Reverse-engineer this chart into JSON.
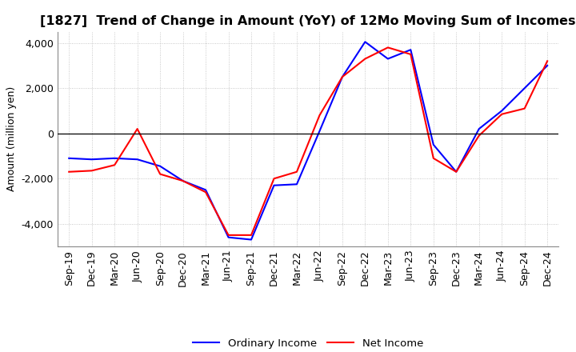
{
  "title": "[1827]  Trend of Change in Amount (YoY) of 12Mo Moving Sum of Incomes",
  "ylabel": "Amount (million yen)",
  "x_labels": [
    "Sep-19",
    "Dec-19",
    "Mar-20",
    "Jun-20",
    "Sep-20",
    "Dec-20",
    "Mar-21",
    "Jun-21",
    "Sep-21",
    "Dec-21",
    "Mar-22",
    "Jun-22",
    "Sep-22",
    "Dec-22",
    "Mar-23",
    "Jun-23",
    "Sep-23",
    "Dec-23",
    "Mar-24",
    "Jun-24",
    "Sep-24",
    "Dec-24"
  ],
  "ordinary_income": [
    -1100,
    -1150,
    -1100,
    -1150,
    -1450,
    -2100,
    -2500,
    -4600,
    -4700,
    -2300,
    -2250,
    100,
    2500,
    4050,
    3300,
    3700,
    -500,
    -1700,
    200,
    1000,
    2000,
    3000
  ],
  "net_income": [
    -1700,
    -1650,
    -1400,
    200,
    -1800,
    -2100,
    -2600,
    -4500,
    -4500,
    -2000,
    -1700,
    800,
    2500,
    3300,
    3800,
    3500,
    -1100,
    -1700,
    -100,
    850,
    1100,
    3200
  ],
  "ylim": [
    -5000,
    4500
  ],
  "yticks": [
    -4000,
    -2000,
    0,
    2000,
    4000
  ],
  "ordinary_color": "#0000ff",
  "net_color": "#ff0000",
  "line_width": 1.5,
  "background_color": "#ffffff",
  "grid_color": "#bbbbbb",
  "title_fontsize": 11.5,
  "axis_fontsize": 9,
  "legend_fontsize": 9.5
}
